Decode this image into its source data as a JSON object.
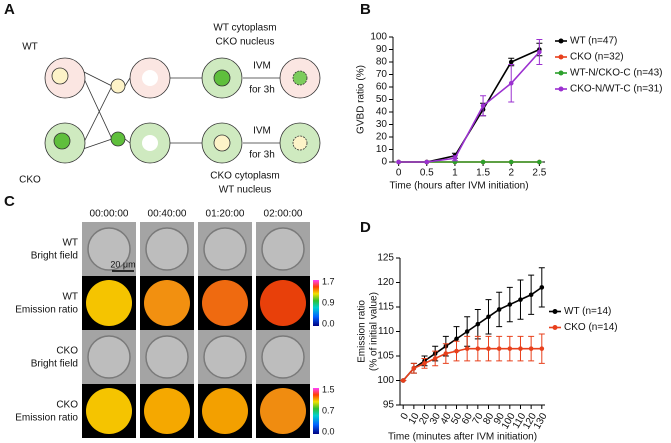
{
  "panel_labels": [
    "A",
    "B",
    "C",
    "D"
  ],
  "diagram": {
    "row_labels": [
      "WT",
      "CKO"
    ],
    "top_result": [
      "WT cytoplasm",
      "CKO nucleus"
    ],
    "bottom_result": [
      "CKO cytoplasm",
      "WT nucleus"
    ],
    "top_step": [
      "IVM",
      "for 3h"
    ],
    "bottom_step": [
      "IVM",
      "for 3h"
    ]
  },
  "images": {
    "timepoints": [
      "00:00:00",
      "00:40:00",
      "01:20:00",
      "02:00:00"
    ],
    "rows": [
      [
        "WT",
        "Bright field"
      ],
      [
        "WT",
        "Emission ratio"
      ],
      [
        "CKO",
        "Bright field"
      ],
      [
        "CKO",
        "Emission ratio"
      ]
    ],
    "scale_bar": "20 μm",
    "colorbar_wt": [
      "1.7",
      "0.9",
      "0.0"
    ],
    "colorbar_cko": [
      "1.5",
      "0.7",
      "0.0"
    ]
  },
  "chart_data": [
    {
      "type": "line",
      "xlabel": "Time (hours after IVM initiation)",
      "ylabel": [
        "GVBD ratio (%)"
      ],
      "x": [
        0,
        0.5,
        1,
        1.5,
        2,
        2.5
      ],
      "xlim": [
        -0.1,
        2.6
      ],
      "xticks": [
        0,
        0.5,
        1,
        1.5,
        2,
        2.5
      ],
      "ylim": [
        0,
        100
      ],
      "yticks": [
        0,
        10,
        20,
        30,
        40,
        50,
        60,
        70,
        80,
        90,
        100
      ],
      "legend": "right",
      "series": [
        {
          "name": "WT (n=47)",
          "color": "#000000",
          "values": [
            0,
            0,
            5,
            42,
            80,
            90
          ],
          "errors": [
            0,
            0,
            2,
            5,
            3,
            5
          ]
        },
        {
          "name": "CKO (n=32)",
          "color": "#e8401c",
          "values": [
            0,
            0,
            0,
            0,
            0,
            0
          ],
          "errors": [
            0,
            0,
            0,
            0,
            0,
            0
          ]
        },
        {
          "name": "WT-N/CKO-C (n=43)",
          "color": "#2ca02c",
          "values": [
            0,
            0,
            0,
            0,
            0,
            0
          ],
          "errors": [
            0,
            0,
            0,
            0,
            0,
            0
          ]
        },
        {
          "name": "CKO-N/WT-C (n=31)",
          "color": "#9b30d0",
          "values": [
            0,
            0,
            3,
            45,
            63,
            88
          ],
          "errors": [
            0,
            0,
            2,
            8,
            15,
            10
          ]
        }
      ]
    },
    {
      "type": "line",
      "xlabel": "Time (minutes after IVM initiation)",
      "ylabel": [
        "Emission ratio",
        "(% of initial value)"
      ],
      "x": [
        0,
        10,
        20,
        30,
        40,
        50,
        60,
        70,
        80,
        90,
        100,
        110,
        120,
        130
      ],
      "xlim": [
        -3,
        133
      ],
      "xticks": [
        0,
        10,
        20,
        30,
        40,
        50,
        60,
        70,
        80,
        90,
        100,
        110,
        120,
        130
      ],
      "ylim": [
        95,
        125
      ],
      "yticks": [
        95,
        100,
        105,
        110,
        115,
        120,
        125
      ],
      "legend": "center-right",
      "series": [
        {
          "name": "WT (n=14)",
          "color": "#000000",
          "values": [
            100,
            102.5,
            104,
            105.5,
            107,
            108.5,
            110,
            111.5,
            113,
            114.5,
            115.5,
            116.5,
            117.5,
            119
          ],
          "errors": [
            0,
            1,
            1,
            1.5,
            2,
            2.5,
            3,
            3,
            3.5,
            3.5,
            3.5,
            4,
            4,
            4
          ]
        },
        {
          "name": "CKO (n=14)",
          "color": "#e8401c",
          "values": [
            100,
            102.5,
            103.5,
            104.5,
            105.5,
            106,
            106.5,
            106.5,
            106.5,
            106.5,
            106.5,
            106.5,
            106.5,
            106.5
          ],
          "errors": [
            0,
            1,
            1,
            1.5,
            2,
            2,
            2.5,
            2.5,
            2.5,
            2.5,
            2.5,
            2.5,
            2.5,
            3
          ]
        }
      ]
    }
  ]
}
